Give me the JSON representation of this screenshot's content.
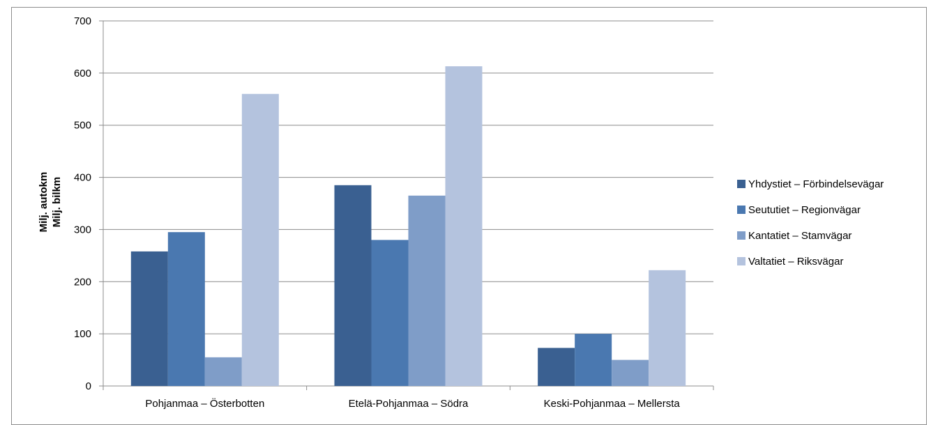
{
  "chart_data": {
    "type": "bar",
    "title": "",
    "ylabel": [
      "Milj. autokm",
      "Milj. bilkm"
    ],
    "xlabel": "",
    "ylim": [
      0,
      700
    ],
    "yticks": [
      0,
      100,
      200,
      300,
      400,
      500,
      600,
      700
    ],
    "grid": true,
    "legend_position": "right",
    "categories": [
      "Pohjanmaa – Österbotten",
      "Etelä-Pohjanmaa – Södra",
      "Keski-Pohjanmaa – Mellersta"
    ],
    "series": [
      {
        "name": "Yhdystiet – Förbindelsevägar",
        "color": "#3a6091",
        "values": [
          258,
          385,
          73
        ]
      },
      {
        "name": "Seututiet – Regionvägar",
        "color": "#4a78b0",
        "values": [
          295,
          280,
          100
        ]
      },
      {
        "name": "Kantatiet – Stamvägar",
        "color": "#7f9dc8",
        "values": [
          55,
          365,
          50
        ]
      },
      {
        "name": "Valtatiet – Riksvägar",
        "color": "#b4c3de",
        "values": [
          560,
          613,
          222
        ]
      }
    ]
  }
}
